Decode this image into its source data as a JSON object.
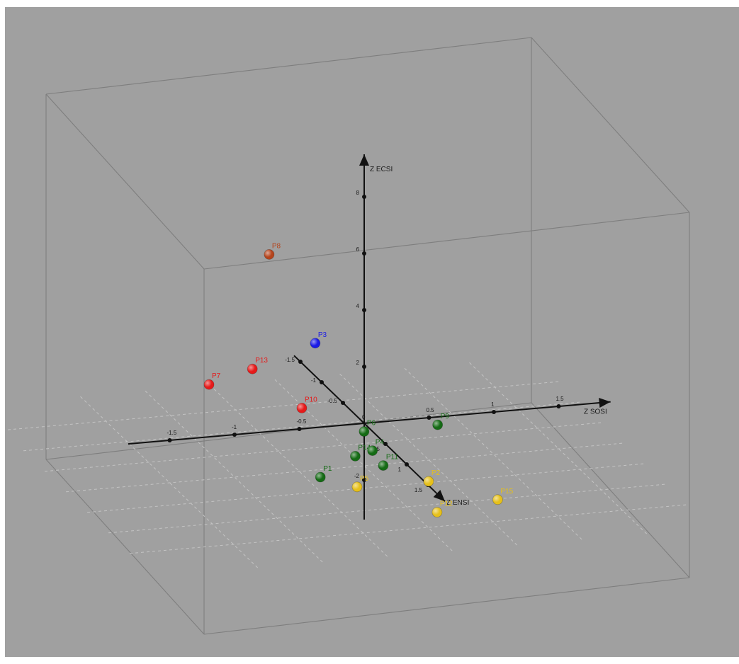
{
  "chart_data": {
    "type": "scatter",
    "title": "",
    "axes": {
      "x": {
        "label": "Z SOSI",
        "ticks": [
          "-1.5",
          "-1",
          "-0.5",
          "0.5",
          "1",
          "1.5"
        ]
      },
      "y": {
        "label": "Z ENSI",
        "ticks": [
          "-1.5",
          "-1",
          "-0.5",
          "0.5",
          "1",
          "1.5"
        ]
      },
      "z": {
        "label": "Z ECSI",
        "ticks": [
          "-2",
          "2",
          "4",
          "6",
          "8"
        ]
      }
    },
    "origin_label": "0",
    "grid": true,
    "points": [
      {
        "name": "P8",
        "color": "#b5441c",
        "x": -0.7,
        "y": -0.1,
        "z": 6.1
      },
      {
        "name": "P3",
        "color": "#1a1ae6",
        "x": -0.05,
        "y": -1.0,
        "z": 1.4
      },
      {
        "name": "P7",
        "color": "#e61a1a",
        "x": -1.0,
        "y": -0.6,
        "z": 0.9
      },
      {
        "name": "P13",
        "color": "#e61a1a",
        "x": -0.6,
        "y": -0.8,
        "z": 1.0
      },
      {
        "name": "P10",
        "color": "#e61a1a",
        "x": -0.35,
        "y": -0.4,
        "z": 0.1
      },
      {
        "name": "P6",
        "color": "#156b15",
        "x": -0.05,
        "y": 0.15,
        "z": -0.05
      },
      {
        "name": "P14",
        "color": "#156b15",
        "x": -0.2,
        "y": 0.4,
        "z": -0.5
      },
      {
        "name": "P4",
        "color": "#156b15",
        "x": -0.1,
        "y": 0.5,
        "z": -0.2
      },
      {
        "name": "P11",
        "color": "#156b15",
        "x": -0.05,
        "y": 0.6,
        "z": -0.6
      },
      {
        "name": "P1",
        "color": "#156b15",
        "x": -0.6,
        "y": 0.8,
        "z": -0.5
      },
      {
        "name": "P9",
        "color": "#156b15",
        "x": 0.55,
        "y": 0.05,
        "z": -0.2
      },
      {
        "name": "P5",
        "color": "#e6c01a",
        "x": -0.35,
        "y": 0.9,
        "z": -0.8
      },
      {
        "name": "P2",
        "color": "#e6c01a",
        "x": 0.3,
        "y": 0.6,
        "z": -1.3
      },
      {
        "name": "P12",
        "color": "#e6c01a",
        "x": 0.3,
        "y": 0.8,
        "z": -2.1
      },
      {
        "name": "P15",
        "color": "#e6c01a",
        "x": 0.8,
        "y": 0.7,
        "z": -2.0
      }
    ]
  }
}
